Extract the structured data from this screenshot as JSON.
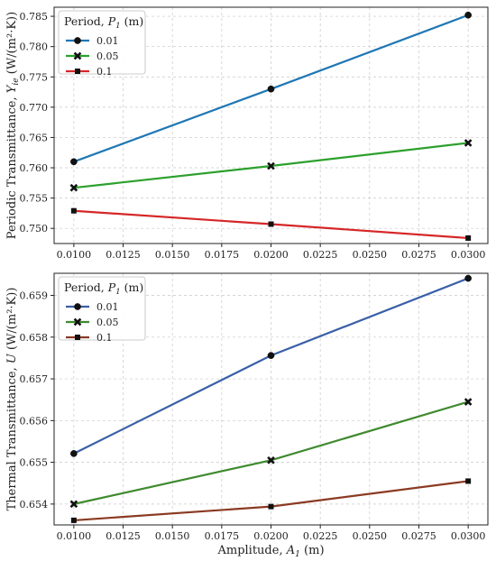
{
  "chart_data": [
    {
      "type": "line",
      "ylabel": "Periodic Transmittance, Y_ie (W/(m²·K))",
      "ylabel_parts": {
        "pre": "Periodic Transmittance, ",
        "sym": "Y",
        "sub": "ie",
        "post": " (W/(m²·K))"
      },
      "x": [
        0.01,
        0.02,
        0.03
      ],
      "xlim": [
        0.009,
        0.031
      ],
      "ylim": [
        0.7475,
        0.7865
      ],
      "xticks": [
        "0.0100",
        "0.0125",
        "0.0150",
        "0.0175",
        "0.0200",
        "0.0225",
        "0.0250",
        "0.0275",
        "0.0300"
      ],
      "yticks": [
        "0.750",
        "0.755",
        "0.760",
        "0.765",
        "0.770",
        "0.775",
        "0.780",
        "0.785"
      ],
      "grid": true,
      "legend_position": "top-left",
      "legend_title": "Period, P_1 (m)",
      "legend_title_parts": {
        "pre": "Period, ",
        "sym": "P",
        "sub": "1",
        "post": " (m)"
      },
      "series": [
        {
          "name": "0.01",
          "values": [
            0.761,
            0.773,
            0.7852
          ],
          "color": "#1f77b4",
          "marker": "circle"
        },
        {
          "name": "0.05",
          "values": [
            0.7567,
            0.7603,
            0.7641
          ],
          "color": "#2ca02c",
          "marker": "x"
        },
        {
          "name": "0.1",
          "values": [
            0.7529,
            0.7507,
            0.7484
          ],
          "color": "#d62728",
          "marker": "square"
        }
      ]
    },
    {
      "type": "line",
      "ylabel": "Thermal Transmittance, U (W/(m²·K))",
      "ylabel_parts": {
        "pre": "Thermal Transmittance, ",
        "sym": "U",
        "sub": "",
        "post": " (W/(m²·K))"
      },
      "xlabel": "Amplitude, A_1 (m)",
      "xlabel_parts": {
        "pre": "Amplitude, ",
        "sym": "A",
        "sub": "1",
        "post": " (m)"
      },
      "x": [
        0.01,
        0.02,
        0.03
      ],
      "xlim": [
        0.009,
        0.031
      ],
      "ylim": [
        0.6535,
        0.65953
      ],
      "xticks": [
        "0.0100",
        "0.0125",
        "0.0150",
        "0.0175",
        "0.0200",
        "0.0225",
        "0.0250",
        "0.0275",
        "0.0300"
      ],
      "yticks": [
        "0.654",
        "0.655",
        "0.656",
        "0.657",
        "0.658",
        "0.659"
      ],
      "grid": true,
      "legend_position": "top-left",
      "legend_title": "Period, P_1 (m)",
      "legend_title_parts": {
        "pre": "Period, ",
        "sym": "P",
        "sub": "1",
        "post": " (m)"
      },
      "series": [
        {
          "name": "0.01",
          "values": [
            0.65521,
            0.65756,
            0.65941
          ],
          "color": "#3a5fa8",
          "marker": "circle"
        },
        {
          "name": "0.05",
          "values": [
            0.654,
            0.65505,
            0.65645
          ],
          "color": "#3f8a2f",
          "marker": "x"
        },
        {
          "name": "0.1",
          "values": [
            0.65361,
            0.65394,
            0.65455
          ],
          "color": "#8b3a22",
          "marker": "square"
        }
      ]
    }
  ]
}
